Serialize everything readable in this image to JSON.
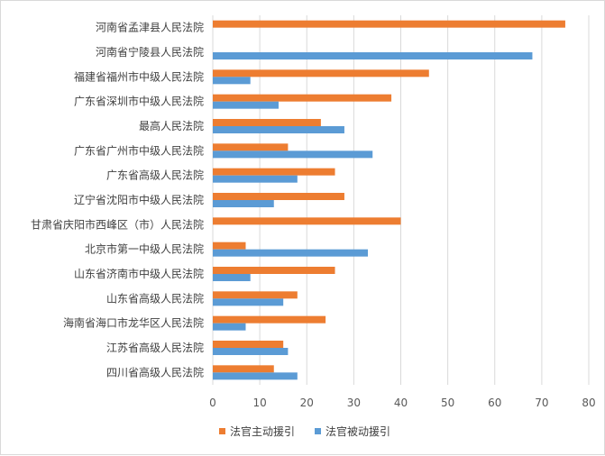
{
  "chart_data": {
    "type": "bar",
    "orientation": "horizontal",
    "categories": [
      "河南省孟津县人民法院",
      "河南省宁陵县人民法院",
      "福建省福州市中级人民法院",
      "广东省深圳市中级人民法院",
      "最高人民法院",
      "广东省广州市中级人民法院",
      "广东省高级人民法院",
      "辽宁省沈阳市中级人民法院",
      "甘肃省庆阳市西峰区（市）人民法院",
      "北京市第一中级人民法院",
      "山东省济南市中级人民法院",
      "山东省高级人民法院",
      "海南省海口市龙华区人民法院",
      "江苏省高级人民法院",
      "四川省高级人民法院"
    ],
    "series": [
      {
        "name": "法官主动援引",
        "color": "#ED7D31",
        "values": [
          75,
          0,
          46,
          38,
          23,
          16,
          26,
          28,
          40,
          7,
          26,
          18,
          24,
          15,
          13
        ]
      },
      {
        "name": "法官被动援引",
        "color": "#5B9BD5",
        "values": [
          0,
          68,
          8,
          14,
          28,
          34,
          18,
          13,
          0,
          33,
          8,
          15,
          7,
          16,
          18
        ]
      }
    ],
    "xlim": [
      0,
      80
    ],
    "xticks": [
      0,
      10,
      20,
      30,
      40,
      50,
      60,
      70,
      80
    ],
    "grid": "vertical",
    "legend": "bottom"
  }
}
